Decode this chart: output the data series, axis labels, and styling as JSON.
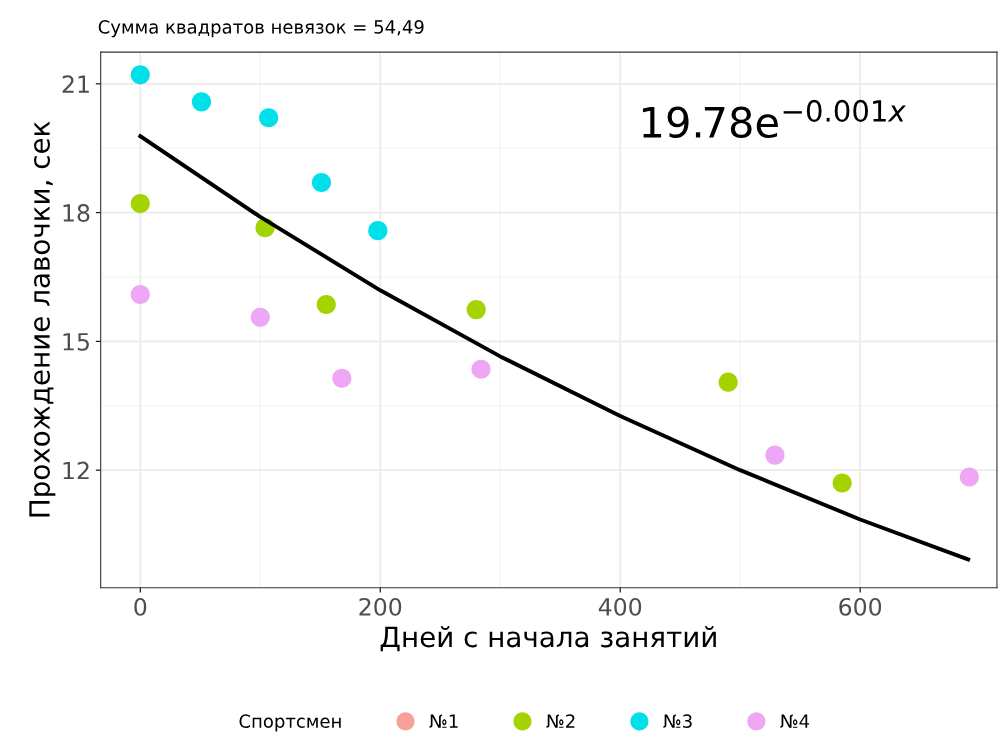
{
  "chart_data": {
    "type": "scatter",
    "title": "Сумма квадратов невязок = 54,49",
    "xlabel": "Дней с начала занятий",
    "ylabel": "Прохождение лавочки, сек",
    "legend_title": "Спортсмен",
    "annotations": [
      "19.78e$^{−0.001x}$"
    ],
    "xlim": [
      -33,
      714
    ],
    "ylim": [
      9.26,
      21.74
    ],
    "xticks": [
      0,
      200,
      400,
      600
    ],
    "yticks": [
      12,
      15,
      18,
      21
    ],
    "grid": true,
    "legend": "bottom",
    "series": [
      {
        "name": "№1",
        "color": "#f8a09a",
        "marker": "circle"
      },
      {
        "name": "№2",
        "color": "#a3d400",
        "marker": "circle",
        "x": [
          0,
          104,
          155,
          280,
          490,
          585
        ],
        "values": [
          18.21,
          17.65,
          15.86,
          15.74,
          14.05,
          11.7
        ]
      },
      {
        "name": "№3",
        "color": "#00e0ea",
        "marker": "circle",
        "x": [
          0,
          51,
          107,
          151,
          198
        ],
        "values": [
          21.21,
          20.58,
          20.21,
          18.7,
          17.58
        ]
      },
      {
        "name": "№4",
        "color": "#eda7f5",
        "marker": "circle",
        "x": [
          0,
          100,
          168,
          284,
          529,
          691
        ],
        "values": [
          16.09,
          15.56,
          14.14,
          14.35,
          12.35,
          11.84
        ]
      },
      {
        "type": "line",
        "color": "#000000",
        "x": [
          0,
          100,
          200,
          300,
          400,
          500,
          600,
          690
        ],
        "values": [
          19.78,
          17.9,
          16.19,
          14.65,
          13.26,
          12.0,
          10.85,
          9.92
        ]
      }
    ]
  }
}
